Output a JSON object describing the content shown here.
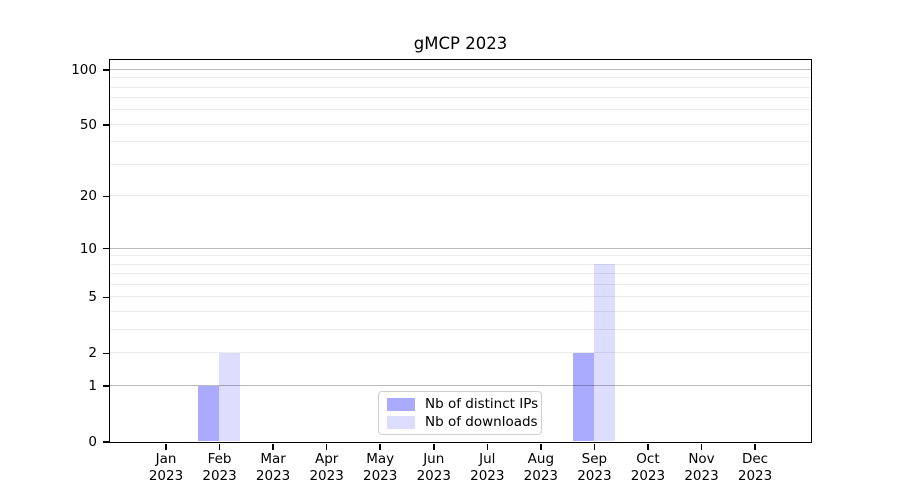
{
  "chart_data": {
    "type": "bar",
    "title": "gMCP 2023",
    "categories": [
      "Jan",
      "Feb",
      "Mar",
      "Apr",
      "May",
      "Jun",
      "Jul",
      "Aug",
      "Sep",
      "Oct",
      "Nov",
      "Dec"
    ],
    "year": "2023",
    "series": [
      {
        "name": "Nb of distinct IPs",
        "color": "#aaaaff",
        "values": [
          0,
          1,
          0,
          0,
          0,
          0,
          0,
          0,
          2,
          0,
          0,
          0
        ]
      },
      {
        "name": "Nb of downloads",
        "color": "#ddddff",
        "values": [
          0,
          2,
          0,
          0,
          0,
          0,
          0,
          0,
          8,
          0,
          0,
          0
        ]
      }
    ],
    "yscale": "log1p",
    "ylim": [
      0,
      113
    ],
    "yticks": [
      0,
      1,
      2,
      5,
      10,
      20,
      50,
      100
    ],
    "major_gridlines": [
      1,
      10,
      100
    ],
    "minor_gridlines": [
      2,
      3,
      4,
      5,
      6,
      7,
      8,
      9,
      20,
      30,
      40,
      50,
      60,
      70,
      80,
      90
    ],
    "grid": "on",
    "legend_position": "lower center",
    "xlabel": "",
    "ylabel": ""
  },
  "colors": {
    "background": "#ffffff",
    "spine": "#000000",
    "major_grid": "rgba(0,0,0,0.27)",
    "minor_grid": "rgba(0,0,0,0.075)",
    "text": "#000000",
    "legend_border": "#d0d0d0"
  }
}
